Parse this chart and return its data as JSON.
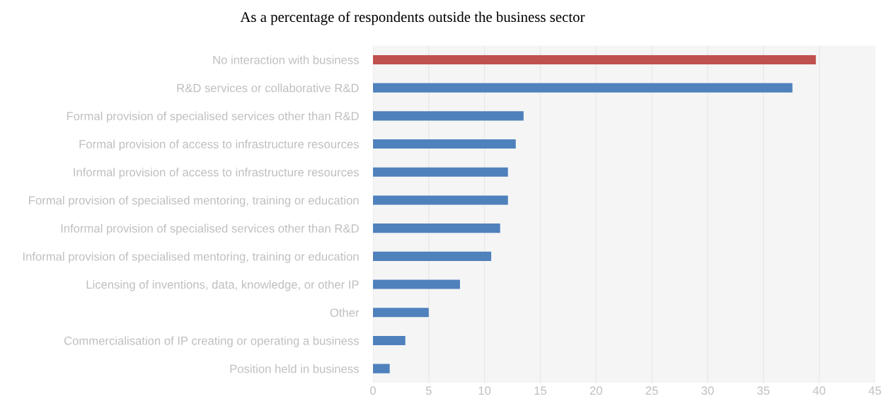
{
  "chart_data": {
    "type": "bar",
    "orientation": "horizontal",
    "title": "As a percentage of respondents outside the business sector",
    "categories": [
      "No interaction with business",
      "R&D services or collaborative R&D",
      "Formal provision of specialised services other than R&D",
      "Formal provision of access to infrastructure resources",
      "Informal provision of access to infrastructure resources",
      "Formal provision of specialised mentoring, training or education",
      "Informal provision of specialised services other than R&D",
      "Informal provision of specialised mentoring, training or education",
      "Licensing of inventions, data, knowledge, or other IP",
      "Other",
      "Commercialisation of IP creating or operating a business",
      "Position held in business"
    ],
    "values": [
      39.7,
      37.6,
      13.5,
      12.8,
      12.1,
      12.1,
      11.4,
      10.6,
      7.8,
      5.0,
      2.9,
      1.5
    ],
    "colors": [
      "#c0504d",
      "#4f81bd",
      "#4f81bd",
      "#4f81bd",
      "#4f81bd",
      "#4f81bd",
      "#4f81bd",
      "#4f81bd",
      "#4f81bd",
      "#4f81bd",
      "#4f81bd",
      "#4f81bd"
    ],
    "xlim": [
      0,
      45
    ],
    "xticks": [
      0,
      5,
      10,
      15,
      20,
      25,
      30,
      35,
      40,
      45
    ],
    "grid": "x"
  }
}
